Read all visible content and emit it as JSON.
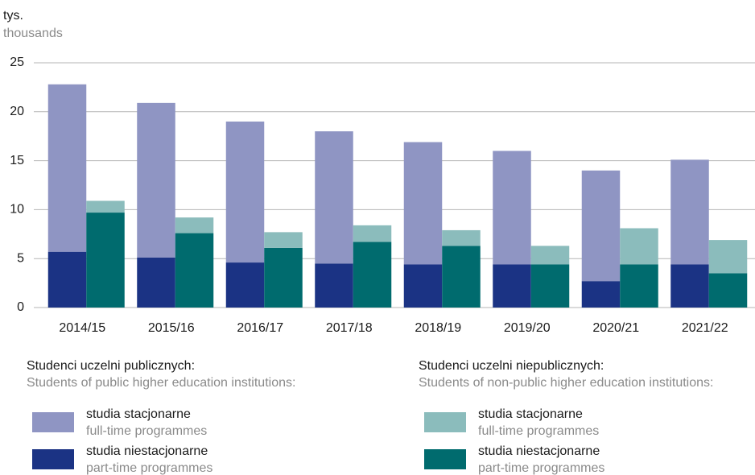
{
  "chart_data": {
    "type": "bar",
    "stacked": true,
    "y_label": "tys.",
    "y_label_en": "thousands",
    "categories": [
      "2014/15",
      "2015/16",
      "2016/17",
      "2017/18",
      "2018/19",
      "2019/20",
      "2020/21",
      "2021/22"
    ],
    "ylim": [
      0,
      25
    ],
    "yticks": [
      0,
      5,
      10,
      15,
      20,
      25
    ],
    "grid": true,
    "groups": [
      {
        "title": "Studenci uczelni publicznych:",
        "subtitle": "Students of public higher education institutions:",
        "series": [
          {
            "name": "studia niestacjonarne",
            "name_en": "part-time programmes",
            "color": "#1b3384",
            "values": [
              5.7,
              5.1,
              4.6,
              4.5,
              4.4,
              4.4,
              2.7,
              4.4
            ]
          },
          {
            "name": "studia stacjonarne",
            "name_en": "full-time programmes",
            "color": "#8f95c3",
            "values": [
              17.1,
              15.8,
              14.4,
              13.5,
              12.5,
              11.6,
              11.3,
              10.7
            ]
          }
        ]
      },
      {
        "title": "Studenci uczelni niepublicznych:",
        "subtitle": "Students of non-public higher education institutions:",
        "series": [
          {
            "name": "studia niestacjonarne",
            "name_en": "part-time programmes",
            "color": "#006b6e",
            "values": [
              9.7,
              7.6,
              6.1,
              6.7,
              6.3,
              4.4,
              4.4,
              3.5
            ]
          },
          {
            "name": "studia stacjonarne",
            "name_en": "full-time programmes",
            "color": "#8bbcbc",
            "values": [
              1.2,
              1.6,
              1.6,
              1.7,
              1.6,
              1.9,
              3.7,
              3.4
            ]
          }
        ]
      }
    ]
  }
}
